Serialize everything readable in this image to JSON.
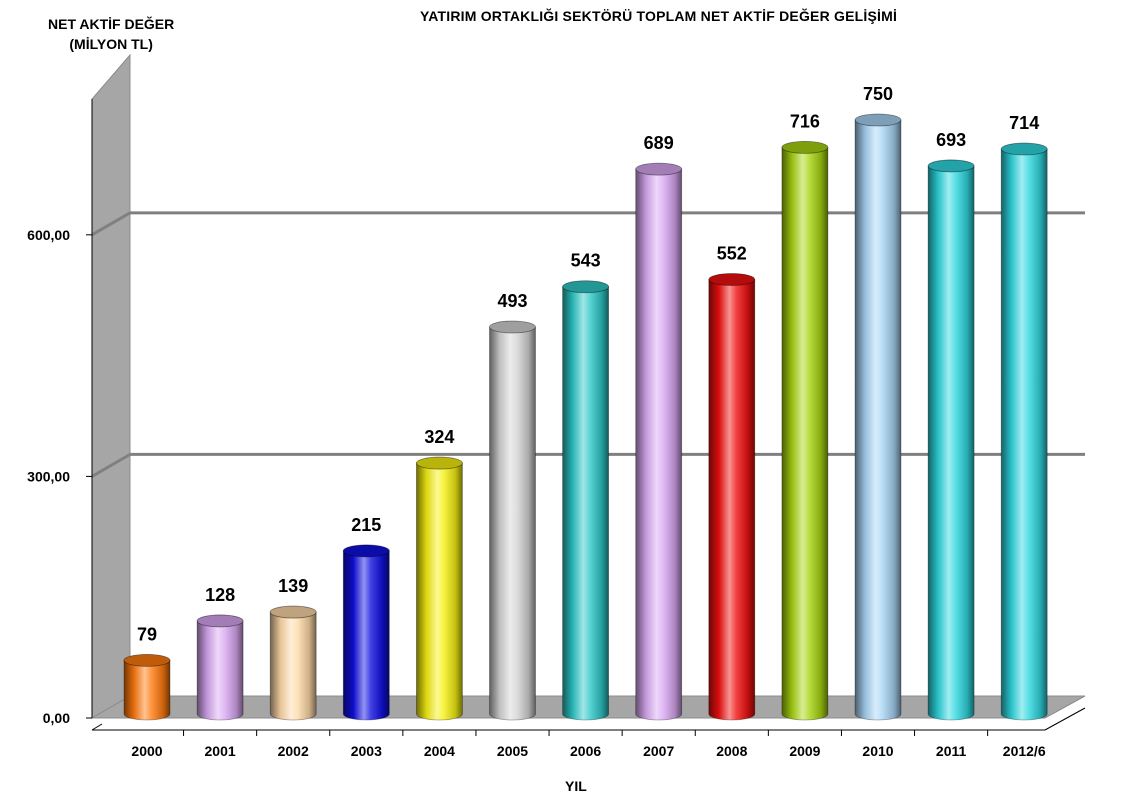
{
  "chart_data": {
    "type": "bar",
    "title": "YATIRIM  ORTAKLIĞI SEKTÖRÜ  TOPLAM NET AKTİF DEĞER GELİŞİMİ",
    "ylabel_line1": "NET AKTİF DEĞER",
    "ylabel_line2": "(MİLYON TL)",
    "xlabel": "YIL",
    "categories": [
      "2000",
      "2001",
      "2002",
      "2003",
      "2004",
      "2005",
      "2006",
      "2007",
      "2008",
      "2009",
      "2010",
      "2011",
      "2012/6"
    ],
    "values": [
      79,
      128,
      139,
      215,
      324,
      493,
      543,
      689,
      552,
      716,
      750,
      693,
      714
    ],
    "value_labels": [
      "79",
      "128",
      "139",
      "215",
      "324",
      "493",
      "543",
      "689",
      "552",
      "716",
      "750",
      "693",
      "714"
    ],
    "colors": [
      "#FF7A0F",
      "#D9A8F2",
      "#FFD9A8",
      "#1010E0",
      "#F5F010",
      "#D4D4D4",
      "#2EC8C8",
      "#D9A8F2",
      "#F01010",
      "#A8D410",
      "#A8D4F5",
      "#2ED8E0",
      "#2ED8E0"
    ],
    "y_ticks": [
      0,
      300,
      600
    ],
    "y_tick_labels": [
      "0,00",
      "300,00",
      "600,00"
    ],
    "ylim": [
      0,
      700
    ],
    "grid": true,
    "style": "3d-cylinder"
  }
}
